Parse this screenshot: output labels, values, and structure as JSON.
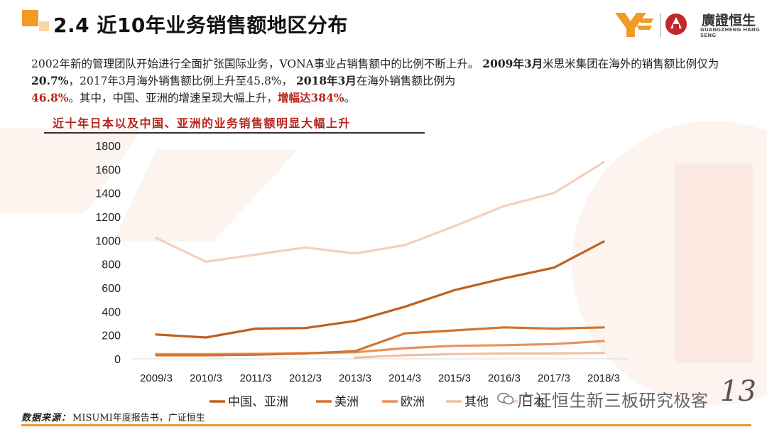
{
  "header": {
    "title": "2.4 近10年业务销售额地区分布",
    "logo_name": "廣證恒生",
    "logo_sub": "GUANGZHENG HANG SENG"
  },
  "intro": {
    "p1": "2002年新的管理团队开始进行全面扩张国际业务，VONA事业占销售额中的比例不断上升。",
    "p2": "2009年3月",
    "p3": "米思米集团在海外的销售额比例仅为",
    "p4": "20.7%",
    "p5": "，2017年3月海外销售额比例上升至45.8%，",
    "p6": "2018年3月",
    "p7": "在海外销售额比例为",
    "p8": "46.8%",
    "p9": "。其中，中国、亚洲的增速呈现大幅上升，",
    "p10": "增幅达384%",
    "p11": "。"
  },
  "chart_heading": "近十年日本以及中国、亚洲的业务销售额明显大幅上升",
  "chart_data": {
    "type": "line",
    "title": "",
    "xlabel": "",
    "ylabel": "",
    "ylim": [
      0,
      1800
    ],
    "yticks": [
      0,
      200,
      400,
      600,
      800,
      1000,
      1200,
      1400,
      1600,
      1800
    ],
    "categories": [
      "2009/3",
      "2010/3",
      "2011/3",
      "2012/3",
      "2013/3",
      "2014/3",
      "2015/3",
      "2016/3",
      "2017/3",
      "2018/3"
    ],
    "legend_position": "bottom",
    "grid": false,
    "series": [
      {
        "name": "中国、亚洲",
        "color": "#C0601E",
        "values": [
          205,
          180,
          255,
          260,
          320,
          440,
          580,
          680,
          770,
          990
        ]
      },
      {
        "name": "美洲",
        "color": "#D2742E",
        "values": [
          30,
          30,
          35,
          45,
          65,
          215,
          240,
          265,
          255,
          265
        ]
      },
      {
        "name": "欧洲",
        "color": "#E8935A",
        "values": [
          40,
          40,
          42,
          48,
          55,
          90,
          110,
          115,
          125,
          150
        ]
      },
      {
        "name": "其他",
        "color": "#F1C1A0",
        "values": [
          null,
          null,
          null,
          null,
          10,
          30,
          40,
          45,
          45,
          50
        ]
      },
      {
        "name": "日本",
        "color": "#F5D0BC",
        "values": [
          1020,
          820,
          880,
          940,
          890,
          960,
          1120,
          1290,
          1400,
          1660
        ]
      }
    ]
  },
  "footer": {
    "label": "数据来源：",
    "source": "MISUMI年度报告书，广证恒生"
  },
  "watermark_wechat": "广证恒生新三板研究极客",
  "page_number": "13",
  "colors": {
    "accent": "#F39A25",
    "red_text": "#B7261E"
  }
}
